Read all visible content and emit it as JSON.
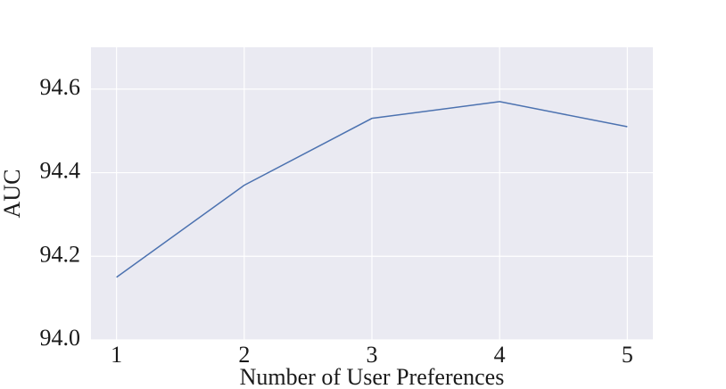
{
  "chart_data": {
    "type": "line",
    "x_label": "Number of User Preferences",
    "y_label": "AUC",
    "x": [
      1,
      2,
      3,
      4,
      5
    ],
    "values": [
      94.15,
      94.37,
      94.53,
      94.57,
      94.51
    ],
    "color": "#4c72b0",
    "xlim": [
      0.8,
      5.2
    ],
    "xticks": [
      1,
      2,
      3,
      4,
      5
    ],
    "ylim": [
      94.0,
      94.7
    ],
    "yticks": [
      {
        "value": 94.0,
        "label": "94.0"
      },
      94.2,
      94.4,
      94.6
    ],
    "grid": true
  }
}
